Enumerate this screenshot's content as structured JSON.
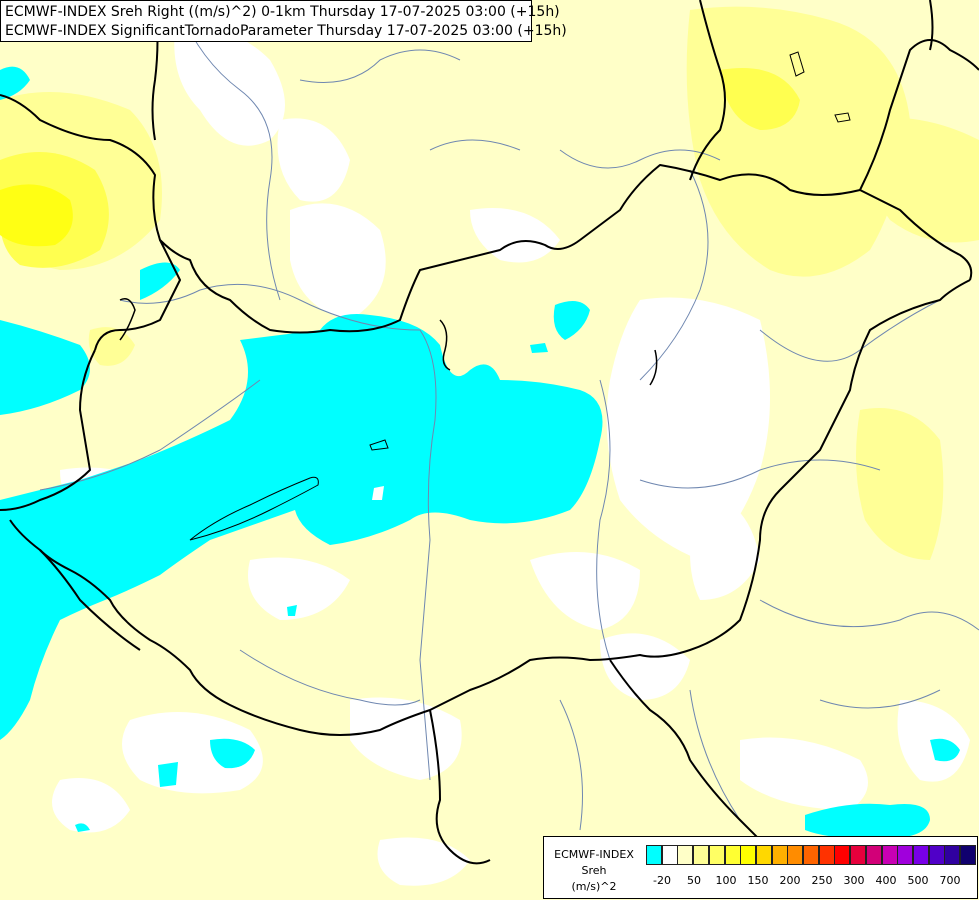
{
  "title": {
    "line1": "ECMWF-INDEX Sreh Right ((m/s)^2) 0-1km Thursday 17-07-2025 03:00 (+15h)",
    "line2": "ECMWF-INDEX SignificantTornadoParameter Thursday 17-07-2025 03:00 (+15h)"
  },
  "legend": {
    "line1": "ECMWF-INDEX",
    "line2": "Sreh",
    "line3": "(m/s)^2",
    "colors": [
      "#00ffff",
      "#ffffff",
      "#ffffc8",
      "#ffff96",
      "#ffff64",
      "#ffff32",
      "#ffff00",
      "#ffd800",
      "#ffb000",
      "#ff8c00",
      "#ff6400",
      "#ff3200",
      "#ff0000",
      "#e6003c",
      "#d20078",
      "#c800b4",
      "#a000dc",
      "#7800e6",
      "#5000c8",
      "#3000a0",
      "#10006e"
    ],
    "ticks": [
      "-20",
      "50",
      "100",
      "150",
      "200",
      "250",
      "300",
      "400",
      "500",
      "700"
    ]
  },
  "colors": {
    "cyan": "#00ffff",
    "white": "#ffffff",
    "pale_yellow": "#ffffc8",
    "light_yellow": "#ffff96",
    "yellow": "#ffff50",
    "strong_yellow": "#ffff00",
    "border": "#000000",
    "river": "#6f87b0"
  }
}
